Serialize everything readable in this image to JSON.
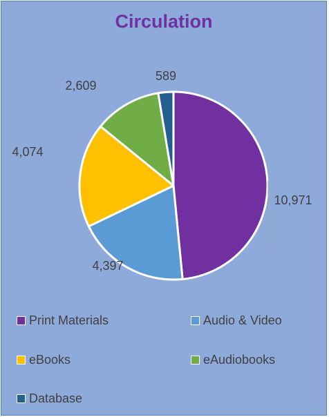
{
  "chart_data": {
    "type": "pie",
    "title": "Circulation",
    "categories": [
      "Print Materials",
      "Audio & Video",
      "eBooks",
      "eAudiobooks",
      "Database"
    ],
    "values": [
      10971,
      4397,
      4074,
      2609,
      589
    ],
    "value_labels": [
      "10,971",
      "4,397",
      "4,074",
      "2,609",
      "589"
    ],
    "colors": [
      "#7030a0",
      "#5b9bd5",
      "#ffc000",
      "#70ad47",
      "#255e91"
    ],
    "legend_position": "bottom",
    "background": "#8eaadb",
    "title_color": "#7030a0"
  }
}
